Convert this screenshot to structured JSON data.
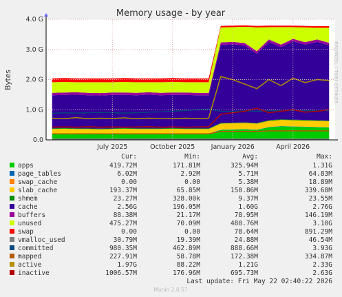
{
  "chart_data": {
    "type": "stacked-area",
    "title": "Memory usage - by year",
    "y_label": "Bytes",
    "side_text": "RRDTOOL / TOBI OETIKER",
    "categories": [
      null,
      null,
      null,
      null,
      null,
      "July 2025",
      null,
      null,
      null,
      null,
      "October 2025",
      null,
      null,
      null,
      null,
      "January 2026",
      null,
      null,
      null,
      null,
      "April 2026",
      null,
      null,
      null
    ],
    "ylim": [
      0,
      4
    ],
    "yticks": [
      {
        "value": 0,
        "label": "0.0"
      },
      {
        "value": 1,
        "label": "1.0 G"
      },
      {
        "value": 2,
        "label": "2.0 G"
      },
      {
        "value": 3,
        "label": "3.0 G"
      },
      {
        "value": 4,
        "label": "4.0 G"
      }
    ],
    "grid": true,
    "stat_columns": [
      "Cur:",
      "Min:",
      "Avg:",
      "Max:"
    ],
    "series": [
      {
        "name": "apps",
        "color": "#00cc00",
        "stack": true,
        "values": [
          0.2,
          0.21,
          0.2,
          0.2,
          0.19,
          0.2,
          0.21,
          0.2,
          0.2,
          0.2,
          0.21,
          0.2,
          0.2,
          0.2,
          0.33,
          0.34,
          0.35,
          0.33,
          0.42,
          0.45,
          0.44,
          0.43,
          0.42,
          0.41
        ],
        "stats": [
          "419.72M",
          "171.81M",
          "325.94M",
          "1.31G"
        ]
      },
      {
        "name": "page_tables",
        "color": "#0066b3",
        "stack": true,
        "values": [
          0.006,
          0.006,
          0.006,
          0.006,
          0.006,
          0.006,
          0.006,
          0.006,
          0.006,
          0.006,
          0.006,
          0.006,
          0.006,
          0.006,
          0.006,
          0.006,
          0.006,
          0.006,
          0.006,
          0.006,
          0.006,
          0.006,
          0.006,
          0.006
        ],
        "stats": [
          "6.02M",
          "2.92M",
          "5.71M",
          "64.83M"
        ]
      },
      {
        "name": "swap_cache",
        "color": "#ff8000",
        "stack": true,
        "values": [
          0.005,
          0.005,
          0.005,
          0.005,
          0.005,
          0.005,
          0.005,
          0.005,
          0.005,
          0.005,
          0.005,
          0.005,
          0.005,
          0.005,
          0.005,
          0.005,
          0.005,
          0.005,
          0.005,
          0.005,
          0.005,
          0.005,
          0.005,
          0.005
        ],
        "stats": [
          "0.00",
          "0.00",
          "5.38M",
          "18.89M"
        ]
      },
      {
        "name": "slab_cache",
        "color": "#ffcc00",
        "stack": true,
        "values": [
          0.15,
          0.15,
          0.15,
          0.15,
          0.15,
          0.15,
          0.15,
          0.15,
          0.15,
          0.15,
          0.15,
          0.15,
          0.15,
          0.15,
          0.2,
          0.2,
          0.2,
          0.2,
          0.2,
          0.2,
          0.2,
          0.2,
          0.2,
          0.2
        ],
        "stats": [
          "193.37M",
          "65.85M",
          "150.86M",
          "339.68M"
        ]
      },
      {
        "name": "shmem",
        "color": "#008f00",
        "stack": true,
        "values": [
          0.02,
          0.02,
          0.02,
          0.02,
          0.02,
          0.02,
          0.02,
          0.02,
          0.02,
          0.02,
          0.02,
          0.02,
          0.02,
          0.02,
          0.02,
          0.02,
          0.02,
          0.02,
          0.02,
          0.02,
          0.02,
          0.02,
          0.02,
          0.02
        ],
        "stats": [
          "23.27M",
          "328.00k",
          "9.37M",
          "23.55M"
        ]
      },
      {
        "name": "cache",
        "color": "#330099",
        "stack": true,
        "values": [
          1.1,
          1.1,
          1.12,
          1.1,
          1.1,
          1.11,
          1.1,
          1.1,
          1.12,
          1.1,
          1.1,
          1.11,
          1.1,
          1.1,
          2.59,
          2.6,
          2.55,
          2.3,
          2.6,
          2.4,
          2.6,
          2.5,
          2.6,
          2.5
        ],
        "stats": [
          "2.56G",
          "196.05M",
          "1.60G",
          "2.76G"
        ]
      },
      {
        "name": "buffers",
        "color": "#990099",
        "stack": true,
        "values": [
          0.08,
          0.08,
          0.08,
          0.08,
          0.08,
          0.08,
          0.08,
          0.08,
          0.08,
          0.08,
          0.08,
          0.08,
          0.08,
          0.08,
          0.08,
          0.08,
          0.08,
          0.08,
          0.08,
          0.08,
          0.08,
          0.08,
          0.08,
          0.08
        ],
        "stats": [
          "88.38M",
          "21.17M",
          "78.95M",
          "146.19M"
        ]
      },
      {
        "name": "unused",
        "color": "#ccff00",
        "stack": true,
        "values": [
          0.35,
          0.35,
          0.33,
          0.35,
          0.36,
          0.34,
          0.35,
          0.35,
          0.33,
          0.35,
          0.35,
          0.34,
          0.35,
          0.35,
          0.5,
          0.49,
          0.54,
          0.79,
          0.41,
          0.58,
          0.39,
          0.49,
          0.39,
          0.5
        ],
        "stats": [
          "475.27M",
          "70.09M",
          "480.76M",
          "3.10G"
        ]
      },
      {
        "name": "swap",
        "color": "#ff0000",
        "stack": true,
        "values": [
          0.13,
          0.13,
          0.13,
          0.13,
          0.13,
          0.13,
          0.13,
          0.13,
          0.13,
          0.13,
          0.13,
          0.13,
          0.13,
          0.13,
          0.05,
          0.05,
          0.05,
          0.05,
          0.05,
          0.05,
          0.05,
          0.05,
          0.05,
          0.05
        ],
        "stats": [
          "0.00",
          "0.00",
          "78.64M",
          "891.29M"
        ]
      },
      {
        "name": "vmalloc_used",
        "color": "#808080",
        "stack": false,
        "values": [
          0.03,
          0.03,
          0.03,
          0.03,
          0.03,
          0.03,
          0.03,
          0.03,
          0.03,
          0.03,
          0.03,
          0.03,
          0.03,
          0.03,
          0.03,
          0.03,
          0.03,
          0.03,
          0.03,
          0.03,
          0.03,
          0.03,
          0.03,
          0.03
        ],
        "stats": [
          "30.79M",
          "19.39M",
          "24.88M",
          "46.54M"
        ]
      },
      {
        "name": "committed",
        "color": "#00487d",
        "stack": false,
        "values": [
          0.88,
          0.9,
          0.89,
          0.9,
          0.91,
          0.9,
          0.89,
          0.9,
          0.92,
          0.93,
          0.95,
          0.97,
          1.0,
          1.02,
          0.95,
          0.94,
          0.96,
          0.95,
          0.97,
          0.96,
          0.98,
          0.97,
          0.96,
          0.98
        ],
        "stats": [
          "980.35M",
          "462.89M",
          "888.66M",
          "3.93G"
        ]
      },
      {
        "name": "mapped",
        "color": "#b35a00",
        "stack": false,
        "values": [
          0.2,
          0.2,
          0.2,
          0.2,
          0.2,
          0.2,
          0.2,
          0.2,
          0.2,
          0.2,
          0.2,
          0.2,
          0.2,
          0.2,
          0.28,
          0.28,
          0.28,
          0.28,
          0.3,
          0.3,
          0.3,
          0.3,
          0.3,
          0.3
        ],
        "stats": [
          "227.91M",
          "58.78M",
          "172.38M",
          "334.87M"
        ]
      },
      {
        "name": "active",
        "color": "#b38f00",
        "stack": false,
        "values": [
          0.72,
          0.7,
          0.74,
          0.7,
          0.72,
          0.71,
          0.73,
          0.7,
          0.72,
          0.71,
          0.7,
          0.72,
          0.71,
          0.72,
          2.1,
          2.0,
          1.85,
          1.7,
          2.0,
          1.8,
          2.05,
          1.9,
          2.0,
          1.97
        ],
        "stats": [
          "1.97G",
          "88.22M",
          "1.21G",
          "2.33G"
        ]
      },
      {
        "name": "inactive",
        "color": "#b30000",
        "stack": false,
        "values": [
          0.42,
          0.43,
          0.42,
          0.44,
          0.42,
          0.43,
          0.42,
          0.43,
          0.44,
          0.42,
          0.43,
          0.42,
          0.43,
          0.44,
          0.85,
          0.9,
          0.95,
          1.05,
          0.9,
          0.95,
          1.0,
          0.92,
          0.95,
          1.0
        ],
        "stats": [
          "1006.57M",
          "176.96M",
          "695.73M",
          "2.63G"
        ]
      }
    ]
  },
  "footer": {
    "last_update": "Last update: Fri May 22 02:40:22 2026",
    "version": "Munin 2.0.57"
  }
}
